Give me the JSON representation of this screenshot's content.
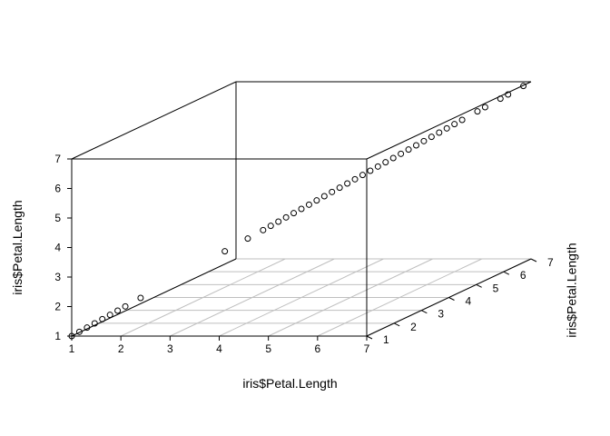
{
  "chart_data": {
    "type": "scatter3d",
    "title": "",
    "xlabel": "iris$Petal.Length",
    "ylabel": "iris$Petal.Length",
    "zlabel": "iris$Petal.Length",
    "xlim": [
      1,
      7
    ],
    "ylim": [
      1,
      7
    ],
    "zlim": [
      1,
      7
    ],
    "x_ticks": [
      "1",
      "2",
      "3",
      "4",
      "5",
      "6",
      "7"
    ],
    "y_ticks": [
      "1",
      "2",
      "3",
      "4",
      "5",
      "6",
      "7"
    ],
    "z_ticks": [
      "1",
      "2",
      "3",
      "4",
      "5",
      "6",
      "7"
    ],
    "grid": "floor",
    "points": [
      1.0,
      1.1,
      1.2,
      1.3,
      1.4,
      1.5,
      1.6,
      1.7,
      1.9,
      3.0,
      3.3,
      3.5,
      3.6,
      3.7,
      3.8,
      3.9,
      4.0,
      4.1,
      4.2,
      4.3,
      4.4,
      4.5,
      4.6,
      4.7,
      4.8,
      4.9,
      5.0,
      5.1,
      5.2,
      5.3,
      5.4,
      5.5,
      5.6,
      5.7,
      5.8,
      5.9,
      6.0,
      6.1,
      6.3,
      6.4,
      6.6,
      6.7,
      6.9
    ]
  }
}
